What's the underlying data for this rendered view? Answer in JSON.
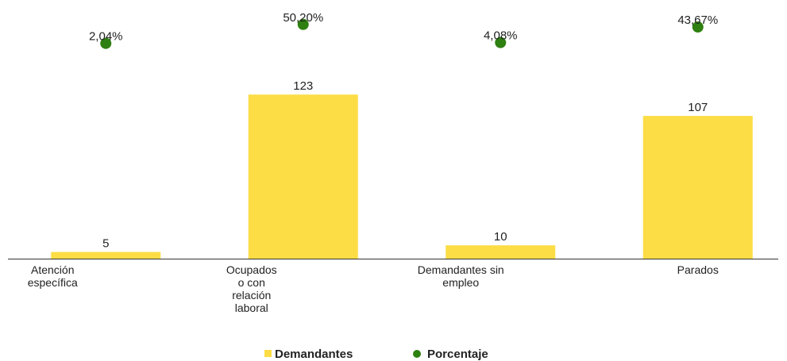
{
  "chart_data": {
    "type": "bar",
    "categories": [
      "Atención específica",
      "Ocupados o con relación laboral",
      "Demandantes sin empleo",
      "Parados"
    ],
    "series": [
      {
        "name": "Demandantes",
        "color": "#fcdd45",
        "values": [
          5,
          123,
          10,
          107
        ]
      },
      {
        "name": "Porcentaje",
        "color": "#2e8010",
        "axis": "y2",
        "values": [
          2.04,
          50.2,
          4.08,
          43.67
        ],
        "value_labels": [
          "2,04%",
          "50,20%",
          "4,08%",
          "43,67%"
        ]
      }
    ],
    "ylim": [
      0,
      182
    ],
    "y2lim": [
      -545,
      72
    ]
  }
}
